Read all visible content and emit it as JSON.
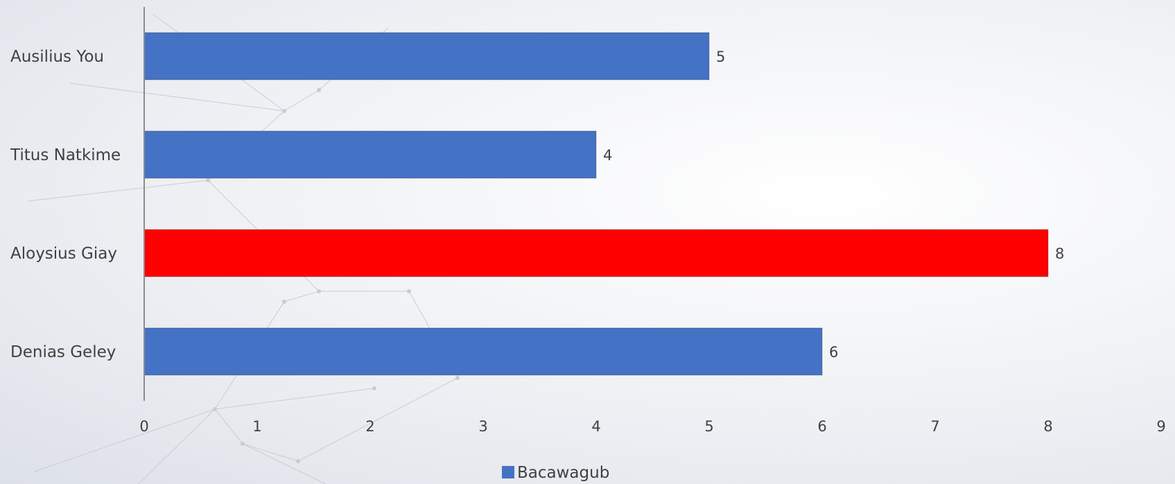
{
  "chart_data": {
    "type": "bar",
    "orientation": "horizontal",
    "categories": [
      "Ausilius You",
      "Titus Natkime",
      "Aloysius Giay",
      "Denias Geley"
    ],
    "series": [
      {
        "name": "Bacawagub",
        "values": [
          5,
          4,
          8,
          6
        ],
        "colors": [
          "#4472c4",
          "#4472c4",
          "#ff0000",
          "#4472c4"
        ]
      }
    ],
    "xlim": [
      0,
      9
    ],
    "x_ticks": [
      0,
      1,
      2,
      3,
      4,
      5,
      6,
      7,
      8,
      9
    ],
    "data_labels": [
      "5",
      "4",
      "8",
      "6"
    ],
    "grid": false,
    "legend_position": "bottom",
    "legend_color": "#4472c4"
  }
}
